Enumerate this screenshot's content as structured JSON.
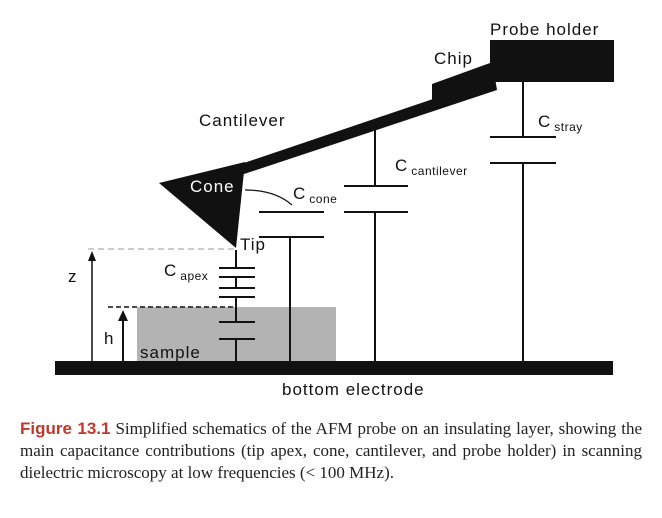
{
  "diagram": {
    "labels": {
      "probe_holder": "Probe holder",
      "chip": "Chip",
      "cantilever": "Cantilever",
      "cone": "Cone",
      "tip": "Tip",
      "c_stray_main": "C",
      "c_stray_sub": "stray",
      "c_cantilever_main": "C",
      "c_cantilever_sub": "cantilever",
      "c_cone_main": "C",
      "c_cone_sub": "cone",
      "c_apex_main": "C",
      "c_apex_sub": "apex",
      "z": "z",
      "h": "h",
      "sample": "sample",
      "bottom_electrode": "bottom electrode"
    },
    "colors": {
      "ink": "#111111",
      "sample_fill": "#b3b3b3",
      "guide_line": "#999999",
      "caption_figure": "#c0392b"
    }
  },
  "caption": {
    "figure_label": "Figure 13.1",
    "text": "Simplified schematics of the AFM probe on an insulating layer, showing the main capacitance contributions (tip apex, cone, cantilever, and probe holder) in scanning dielectric microscopy at low frequencies (< 100 MHz)."
  }
}
